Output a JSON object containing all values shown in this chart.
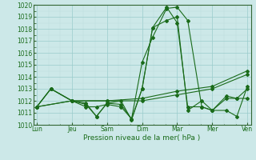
{
  "xlabel": "Pression niveau de la mer( hPa )",
  "bg_color": "#cce8e8",
  "grid_major_color": "#99cccc",
  "grid_minor_color": "#bbdddd",
  "line_color": "#1a6b1a",
  "spine_color": "#336633",
  "ylim": [
    1010,
    1020
  ],
  "yticks": [
    1010,
    1011,
    1012,
    1013,
    1014,
    1015,
    1016,
    1017,
    1018,
    1019,
    1020
  ],
  "xtick_labels": [
    "Lun",
    "Jeu",
    "Sam",
    "Dim",
    "Mar",
    "Mer",
    "Ven"
  ],
  "xtick_positions": [
    0,
    1,
    2,
    3,
    4,
    5,
    6
  ],
  "lines": [
    {
      "x": [
        0,
        0.4,
        1,
        1.4,
        1.7,
        2,
        2.4,
        2.7,
        3.0,
        3.3,
        3.7,
        4.0,
        4.3,
        4.7,
        5.0,
        5.4,
        5.7,
        6.0
      ],
      "y": [
        1011.5,
        1013.0,
        1012.0,
        1011.5,
        1011.5,
        1011.7,
        1011.5,
        1010.5,
        1015.2,
        1017.3,
        1019.7,
        1019.8,
        1018.7,
        1011.5,
        1011.2,
        1012.4,
        1012.2,
        1012.2
      ]
    },
    {
      "x": [
        0,
        0.4,
        1,
        1.4,
        1.7,
        2,
        2.4,
        2.7,
        3.0,
        3.3,
        3.7,
        4.0,
        4.3,
        4.7,
        5.0,
        5.4,
        5.7,
        6.0
      ],
      "y": [
        1011.5,
        1013.0,
        1012.0,
        1011.8,
        1010.7,
        1011.8,
        1012.0,
        1010.4,
        1013.0,
        1018.1,
        1018.7,
        1019.0,
        1011.2,
        1012.0,
        1011.2,
        1012.2,
        1012.2,
        1013.0
      ]
    },
    {
      "x": [
        0,
        0.4,
        1,
        1.4,
        1.7,
        2,
        2.4,
        2.7,
        3.0,
        3.3,
        3.7,
        4.0,
        4.3,
        4.7,
        5.0,
        5.4,
        5.7,
        6.0
      ],
      "y": [
        1011.5,
        1013.0,
        1012.0,
        1011.7,
        1010.7,
        1011.8,
        1011.7,
        1010.5,
        1013.0,
        1018.1,
        1019.8,
        1018.5,
        1011.5,
        1011.5,
        1011.2,
        1011.2,
        1010.7,
        1013.2
      ]
    },
    {
      "x": [
        0,
        1,
        2,
        3,
        4,
        5,
        6
      ],
      "y": [
        1011.5,
        1012.0,
        1012.0,
        1012.2,
        1012.8,
        1013.2,
        1014.5
      ]
    },
    {
      "x": [
        0,
        1,
        2,
        3,
        4,
        5,
        6
      ],
      "y": [
        1011.5,
        1012.0,
        1012.0,
        1012.0,
        1012.5,
        1013.0,
        1014.2
      ]
    }
  ]
}
